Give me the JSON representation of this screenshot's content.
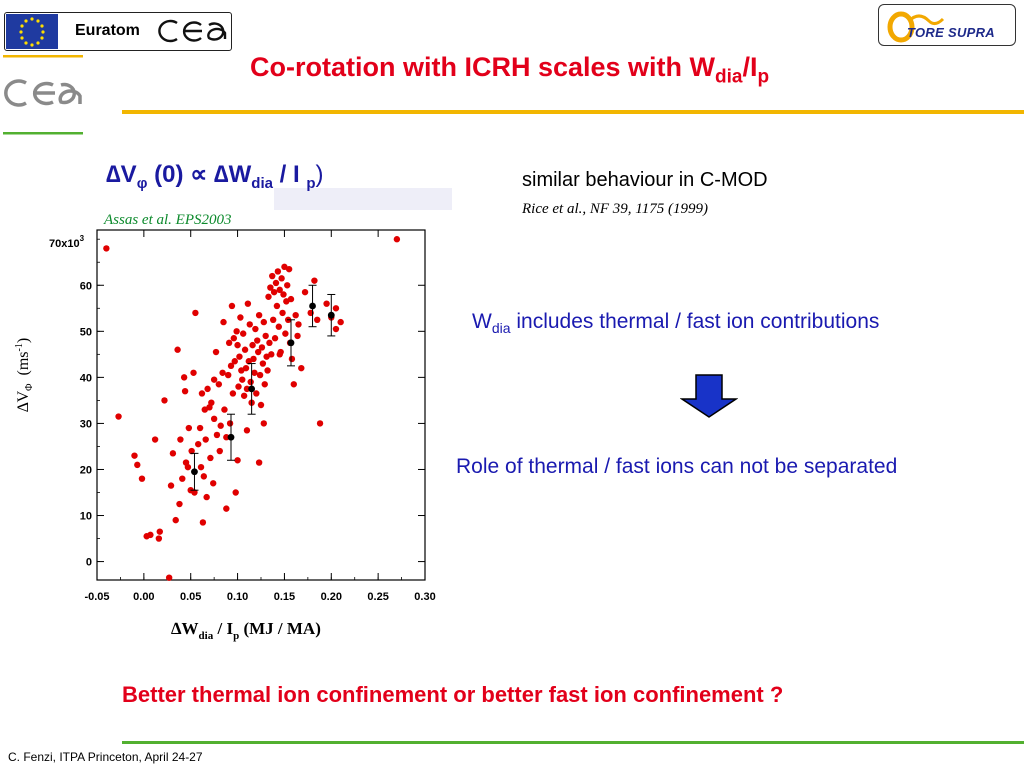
{
  "header": {
    "euratom_label": "Euratom",
    "tore_supra_label": "TORE SUPRA",
    "title_main": "Co-rotation with ICRH scales with W",
    "title_sub1": "dia",
    "title_slash": "/I",
    "title_sub2": "p"
  },
  "formula": {
    "delta_v": "∆V",
    "phi": "φ",
    "zero": " (0) ",
    "prop": "∝",
    "delta_w": " ∆W",
    "dia": "dia",
    "over_i": " / I ",
    "p": "p",
    "close": ")"
  },
  "citation": "Assas et al. EPS2003",
  "right_panel": {
    "cmod": "similar behaviour in C-MOD",
    "rice_ref": "Rice et al., NF 39, 1175 (1999)",
    "wdia_main": "W",
    "wdia_sub": "dia",
    "wdia_rest": " includes thermal / fast ion contributions",
    "separation": "Role of thermal / fast ions can not be separated"
  },
  "conclusion": "Better thermal ion confinement or better fast ion confinement ?",
  "footer": "C. Fenzi, ITPA Princeton, April 24-27",
  "colors": {
    "title_red": "#e2001a",
    "blue_text": "#1a1ab0",
    "citation_green": "#0c8a2c",
    "rule_yellow": "#f2b600",
    "rule_green": "#52b030",
    "arrow_blue": "#1833c8",
    "scatter_red": "#e00000"
  },
  "chart_data": {
    "type": "scatter",
    "xlabel_main": "∆W",
    "xlabel_sub": "dia",
    "xlabel_mid": " /  I",
    "xlabel_sub2": "p",
    "xlabel_units": " (MJ / MA)",
    "ylabel_main": "∆V",
    "ylabel_sub": "Φ",
    "ylabel_units": "(ms",
    "ylabel_exp": "-1",
    "ylabel_close": ")",
    "y_multiplier_label": "70x10",
    "y_multiplier_exp": "3",
    "xlim": [
      -0.05,
      0.3
    ],
    "ylim": [
      -4000,
      72000
    ],
    "x_ticks": [
      -0.05,
      0.0,
      0.05,
      0.1,
      0.15,
      0.2,
      0.25,
      0.3
    ],
    "x_tick_labels": [
      "-0.05",
      "0.00",
      "0.05",
      "0.10",
      "0.15",
      "0.20",
      "0.25",
      "0.30"
    ],
    "y_ticks": [
      0,
      10000,
      20000,
      30000,
      40000,
      50000,
      60000
    ],
    "y_tick_labels": [
      "0",
      "10",
      "20",
      "30",
      "40",
      "50",
      "60"
    ],
    "series": [
      {
        "marker": "red-dot",
        "points": [
          [
            -0.04,
            68000
          ],
          [
            -0.027,
            31500
          ],
          [
            -0.01,
            23000
          ],
          [
            -0.007,
            21000
          ],
          [
            -0.002,
            18000
          ],
          [
            0.003,
            5500
          ],
          [
            0.007,
            5800
          ],
          [
            0.012,
            26500
          ],
          [
            0.016,
            5000
          ],
          [
            0.017,
            6500
          ],
          [
            0.022,
            35000
          ],
          [
            0.027,
            -3500
          ],
          [
            0.029,
            16500
          ],
          [
            0.031,
            23500
          ],
          [
            0.034,
            9000
          ],
          [
            0.036,
            46000
          ],
          [
            0.038,
            12500
          ],
          [
            0.039,
            26500
          ],
          [
            0.041,
            18000
          ],
          [
            0.043,
            40000
          ],
          [
            0.044,
            37000
          ],
          [
            0.045,
            21500
          ],
          [
            0.047,
            20500
          ],
          [
            0.048,
            29000
          ],
          [
            0.05,
            15500
          ],
          [
            0.051,
            24000
          ],
          [
            0.053,
            41000
          ],
          [
            0.054,
            15000
          ],
          [
            0.055,
            54000
          ],
          [
            0.058,
            25500
          ],
          [
            0.06,
            29000
          ],
          [
            0.061,
            20500
          ],
          [
            0.062,
            36500
          ],
          [
            0.063,
            8500
          ],
          [
            0.064,
            18500
          ],
          [
            0.065,
            33000
          ],
          [
            0.066,
            26500
          ],
          [
            0.067,
            14000
          ],
          [
            0.068,
            37500
          ],
          [
            0.07,
            33500
          ],
          [
            0.071,
            22500
          ],
          [
            0.072,
            34500
          ],
          [
            0.074,
            17000
          ],
          [
            0.075,
            31000
          ],
          [
            0.077,
            45500
          ],
          [
            0.078,
            27500
          ],
          [
            0.08,
            38500
          ],
          [
            0.081,
            24000
          ],
          [
            0.082,
            29500
          ],
          [
            0.084,
            41000
          ],
          [
            0.085,
            52000
          ],
          [
            0.086,
            33000
          ],
          [
            0.088,
            27000
          ],
          [
            0.09,
            40500
          ],
          [
            0.091,
            47500
          ],
          [
            0.092,
            30000
          ],
          [
            0.093,
            42500
          ],
          [
            0.094,
            55500
          ],
          [
            0.095,
            36500
          ],
          [
            0.096,
            48500
          ],
          [
            0.097,
            43500
          ],
          [
            0.098,
            15000
          ],
          [
            0.099,
            50000
          ],
          [
            0.1,
            47000
          ],
          [
            0.101,
            38000
          ],
          [
            0.102,
            44500
          ],
          [
            0.103,
            53000
          ],
          [
            0.104,
            41500
          ],
          [
            0.105,
            39500
          ],
          [
            0.106,
            49500
          ],
          [
            0.107,
            36000
          ],
          [
            0.108,
            46000
          ],
          [
            0.109,
            42000
          ],
          [
            0.11,
            37500
          ],
          [
            0.111,
            56000
          ],
          [
            0.112,
            43500
          ],
          [
            0.113,
            51500
          ],
          [
            0.114,
            39000
          ],
          [
            0.115,
            34500
          ],
          [
            0.116,
            47000
          ],
          [
            0.117,
            44000
          ],
          [
            0.118,
            41000
          ],
          [
            0.119,
            50500
          ],
          [
            0.12,
            36500
          ],
          [
            0.121,
            48000
          ],
          [
            0.122,
            45500
          ],
          [
            0.123,
            53500
          ],
          [
            0.124,
            40500
          ],
          [
            0.125,
            34000
          ],
          [
            0.126,
            46500
          ],
          [
            0.127,
            43000
          ],
          [
            0.128,
            52000
          ],
          [
            0.129,
            38500
          ],
          [
            0.13,
            49000
          ],
          [
            0.131,
            44500
          ],
          [
            0.132,
            41500
          ],
          [
            0.133,
            57500
          ],
          [
            0.134,
            47500
          ],
          [
            0.135,
            59500
          ],
          [
            0.136,
            45000
          ],
          [
            0.137,
            62000
          ],
          [
            0.138,
            52500
          ],
          [
            0.139,
            58500
          ],
          [
            0.14,
            48500
          ],
          [
            0.141,
            60500
          ],
          [
            0.142,
            55500
          ],
          [
            0.143,
            63000
          ],
          [
            0.144,
            51000
          ],
          [
            0.145,
            59000
          ],
          [
            0.146,
            45500
          ],
          [
            0.147,
            61500
          ],
          [
            0.148,
            54000
          ],
          [
            0.149,
            58000
          ],
          [
            0.15,
            64000
          ],
          [
            0.151,
            49500
          ],
          [
            0.152,
            56500
          ],
          [
            0.153,
            60000
          ],
          [
            0.154,
            52500
          ],
          [
            0.155,
            63500
          ],
          [
            0.156,
            47500
          ],
          [
            0.157,
            57000
          ],
          [
            0.158,
            44000
          ],
          [
            0.16,
            38500
          ],
          [
            0.162,
            53500
          ],
          [
            0.164,
            49000
          ],
          [
            0.165,
            51500
          ],
          [
            0.168,
            42000
          ],
          [
            0.172,
            58500
          ],
          [
            0.178,
            54000
          ],
          [
            0.182,
            61000
          ],
          [
            0.185,
            52500
          ],
          [
            0.188,
            30000
          ],
          [
            0.195,
            56000
          ],
          [
            0.2,
            53000
          ],
          [
            0.205,
            55000
          ],
          [
            0.21,
            52000
          ],
          [
            0.205,
            50500
          ],
          [
            0.27,
            70000
          ],
          [
            0.123,
            21500
          ],
          [
            0.1,
            22000
          ],
          [
            0.11,
            28500
          ],
          [
            0.145,
            45000
          ],
          [
            0.128,
            30000
          ],
          [
            0.088,
            11500
          ],
          [
            0.075,
            39500
          ]
        ]
      },
      {
        "marker": "black-dot-errorbar",
        "points": [
          [
            0.054,
            19500,
            4000
          ],
          [
            0.093,
            27000,
            5000
          ],
          [
            0.115,
            37500,
            5500
          ],
          [
            0.157,
            47500,
            5000
          ],
          [
            0.18,
            55500,
            4500
          ],
          [
            0.2,
            53500,
            4500
          ]
        ]
      }
    ]
  }
}
